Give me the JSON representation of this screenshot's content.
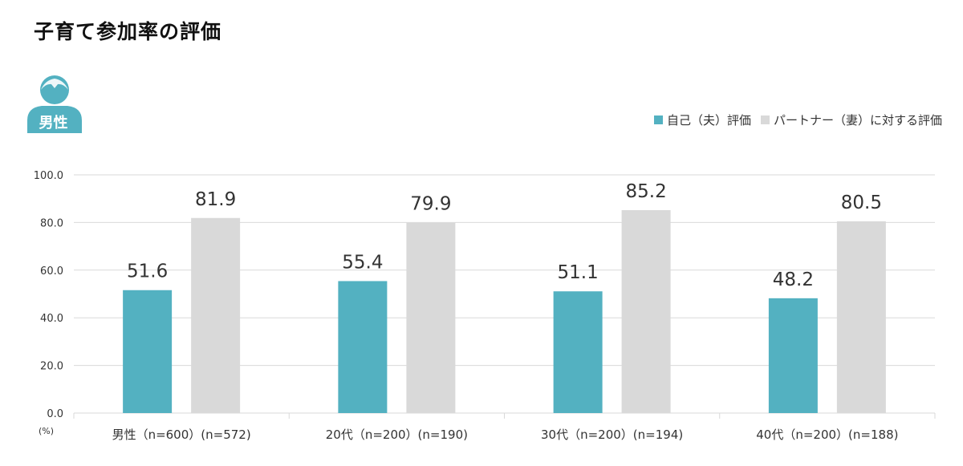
{
  "header": {
    "title": "子育て参加率の評価"
  },
  "badge": {
    "label": "男性",
    "icon": "person-icon"
  },
  "colors": {
    "self": "#53b1c1",
    "partner": "#d9d9d9",
    "grid": "#d9d9d9",
    "badge": "#53b1c1"
  },
  "chart_data": {
    "type": "bar",
    "title": "子育て参加率の評価",
    "unit_label": "(%)",
    "categories": [
      "男性（n=600）(n=572)",
      "20代（n=200）(n=190)",
      "30代（n=200）(n=194)",
      "40代（n=200）(n=188)"
    ],
    "series": [
      {
        "name": "自己（夫）評価",
        "values": [
          51.6,
          55.4,
          51.1,
          48.2
        ]
      },
      {
        "name": "パートナー（妻）に対する評価",
        "values": [
          81.9,
          79.9,
          85.2,
          80.5
        ]
      }
    ],
    "ylim": [
      0,
      100
    ],
    "yticks": [
      "0.0",
      "20.0",
      "40.0",
      "60.0",
      "80.0",
      "100.0"
    ],
    "grid": true,
    "legend_position": "top-right"
  }
}
